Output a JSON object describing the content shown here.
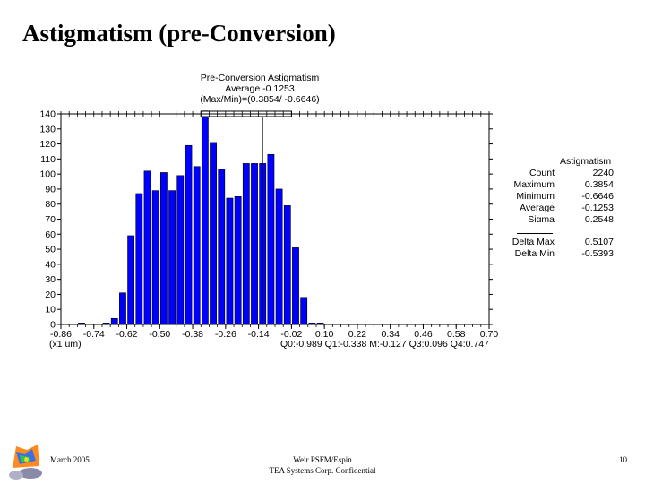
{
  "slide": {
    "title": "Astigmatism (pre-Conversion)",
    "footer_date": "March 2005",
    "footer_center_line1": "Weir PSFM/Espin",
    "footer_center_line2": "TEA Systems Corp. Confidential",
    "page_number": "10"
  },
  "chart_data": {
    "type": "bar",
    "title": "Pre-Conversion Astigmatism",
    "subtitle_average": "Average -0.1253",
    "subtitle_maxmin": "(Max/Min)=(0.3854/ -0.6646)",
    "xlabel": "(x1 um)",
    "ylabel": "",
    "x_tick_labels": [
      "-0.86",
      "-0.74",
      "-0.62",
      "-0.50",
      "-0.38",
      "-0.26",
      "-0.14",
      "-0.02",
      "0.10",
      "0.22",
      "0.34",
      "0.46",
      "0.58",
      "0.70"
    ],
    "x_tick_values": [
      -0.86,
      -0.74,
      -0.62,
      -0.5,
      -0.38,
      -0.26,
      -0.14,
      -0.02,
      0.1,
      0.22,
      0.34,
      0.46,
      0.58,
      0.7
    ],
    "xlim": [
      -0.86,
      0.7
    ],
    "y_tick_labels": [
      "0",
      "10",
      "20",
      "30",
      "40",
      "50",
      "60",
      "70",
      "80",
      "90",
      "100",
      "110",
      "120",
      "130",
      "140"
    ],
    "ylim": [
      0,
      140
    ],
    "bin_width": 0.03,
    "bin_centers": [
      -0.785,
      -0.695,
      -0.665,
      -0.635,
      -0.605,
      -0.575,
      -0.545,
      -0.515,
      -0.485,
      -0.455,
      -0.425,
      -0.395,
      -0.365,
      -0.335,
      -0.305,
      -0.275,
      -0.245,
      -0.215,
      -0.185,
      -0.155,
      -0.125,
      -0.095,
      -0.065,
      -0.035,
      -0.005,
      0.025,
      0.055,
      0.085,
      0.115,
      0.145,
      0.175,
      0.205,
      0.235,
      0.265,
      0.295,
      0.325,
      0.355,
      0.415
    ],
    "values": [
      1,
      1,
      4,
      21,
      59,
      87,
      102,
      89,
      101,
      89,
      99,
      119,
      105,
      142,
      121,
      103,
      84,
      85,
      107,
      107,
      107,
      113,
      90,
      79,
      51,
      18,
      1,
      1
    ],
    "values_start_index": 2,
    "average_marker": -0.1253,
    "range_box": [
      -0.35,
      -0.02
    ],
    "quartiles_text": "Q0:-0.989 Q1:-0.338 M:-0.127 Q3:0.096 Q4:0.747",
    "bar_color": "#0000ff",
    "grid": false
  },
  "stats": {
    "title": "Astigmatism",
    "rows": [
      {
        "label": "Count",
        "value": "2240"
      },
      {
        "label": "Maximum",
        "value": "0.3854"
      },
      {
        "label": "Minimum",
        "value": "-0.6646"
      },
      {
        "label": "Average",
        "value": "-0.1253"
      },
      {
        "label": "Sigma",
        "value": "0.2548"
      },
      {
        "label": "Delta Max",
        "value": "0.5107"
      },
      {
        "label": "Delta Min",
        "value": "-0.5393"
      }
    ]
  }
}
